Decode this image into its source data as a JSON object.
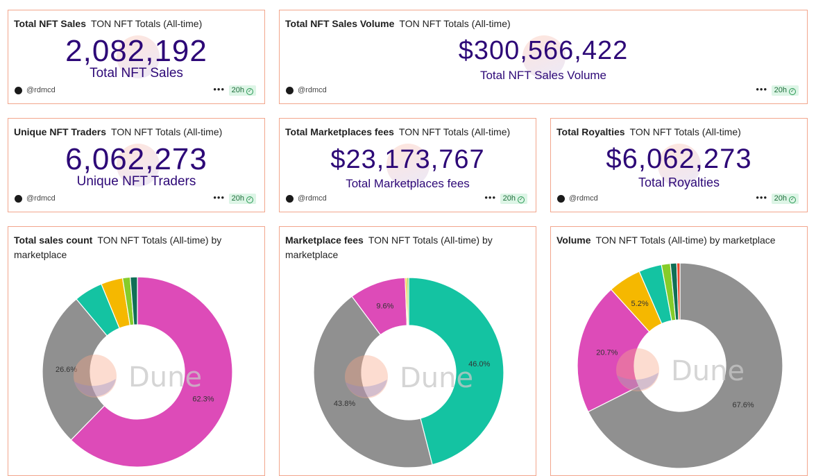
{
  "counters": [
    {
      "title": "Total NFT Sales",
      "query": "TON NFT Totals (All-time)",
      "value": "2,082,192",
      "label": "Total NFT Sales",
      "user": "@rdmcd",
      "age": "20h"
    },
    {
      "title": "Total NFT Sales Volume",
      "query": "TON NFT Totals (All-time)",
      "value": "$300,566,422",
      "label": "Total NFT Sales Volume",
      "user": "@rdmcd",
      "age": "20h"
    },
    {
      "title": "Unique NFT Traders",
      "query": "TON NFT Totals (All-time)",
      "value": "6,062,273",
      "label": "Unique NFT Traders",
      "user": "@rdmcd",
      "age": "20h"
    },
    {
      "title": "Total Marketplaces fees",
      "query": "TON NFT Totals (All-time)",
      "value": "$23,173,767",
      "label": "Total Marketplaces fees",
      "user": "@rdmcd",
      "age": "20h"
    },
    {
      "title": "Total Royalties",
      "query": "TON NFT Totals (All-time)",
      "value": "$6,062,273",
      "label": "Total Royalties",
      "user": "@rdmcd",
      "age": "20h"
    }
  ],
  "charts": [
    {
      "title": "Total sales count",
      "query": "TON NFT Totals (All-time) by marketplace"
    },
    {
      "title": "Marketplace fees",
      "query": "TON NFT Totals (All-time) by marketplace"
    },
    {
      "title": "Volume",
      "query": "TON NFT Totals (All-time) by marketplace"
    }
  ],
  "watermark": "Dune",
  "colors": {
    "accent": "#2d0877",
    "border": "#f2a58c",
    "badge_bg": "#ddf5e6"
  },
  "chart_data": [
    {
      "type": "pie",
      "title": "Total sales count",
      "slices": [
        {
          "value": 62.3,
          "label": "62.3%",
          "color": "#dd4bb8"
        },
        {
          "value": 26.6,
          "label": "26.6%",
          "color": "#909090"
        },
        {
          "value": 4.9,
          "label": "",
          "color": "#14c3a2"
        },
        {
          "value": 3.7,
          "label": "",
          "color": "#f5b800"
        },
        {
          "value": 1.3,
          "label": "",
          "color": "#86cc2a"
        },
        {
          "value": 1.2,
          "label": "",
          "color": "#106f56"
        }
      ]
    },
    {
      "type": "pie",
      "title": "Marketplace fees",
      "slices": [
        {
          "value": 46.0,
          "label": "46.0%",
          "color": "#14c3a2"
        },
        {
          "value": 43.8,
          "label": "43.8%",
          "color": "#909090"
        },
        {
          "value": 9.6,
          "label": "9.6%",
          "color": "#dd4bb8"
        },
        {
          "value": 0.3,
          "label": "",
          "color": "#f5b800"
        },
        {
          "value": 0.3,
          "label": "",
          "color": "#86cc2a"
        }
      ]
    },
    {
      "type": "pie",
      "title": "Volume",
      "slices": [
        {
          "value": 67.6,
          "label": "67.6%",
          "color": "#909090"
        },
        {
          "value": 20.7,
          "label": "20.7%",
          "color": "#dd4bb8"
        },
        {
          "value": 5.2,
          "label": "5.2%",
          "color": "#f5b800"
        },
        {
          "value": 3.6,
          "label": "",
          "color": "#14c3a2"
        },
        {
          "value": 1.4,
          "label": "",
          "color": "#86cc2a"
        },
        {
          "value": 1.0,
          "label": "",
          "color": "#106f56"
        },
        {
          "value": 0.5,
          "label": "",
          "color": "#e8482c"
        }
      ]
    }
  ]
}
